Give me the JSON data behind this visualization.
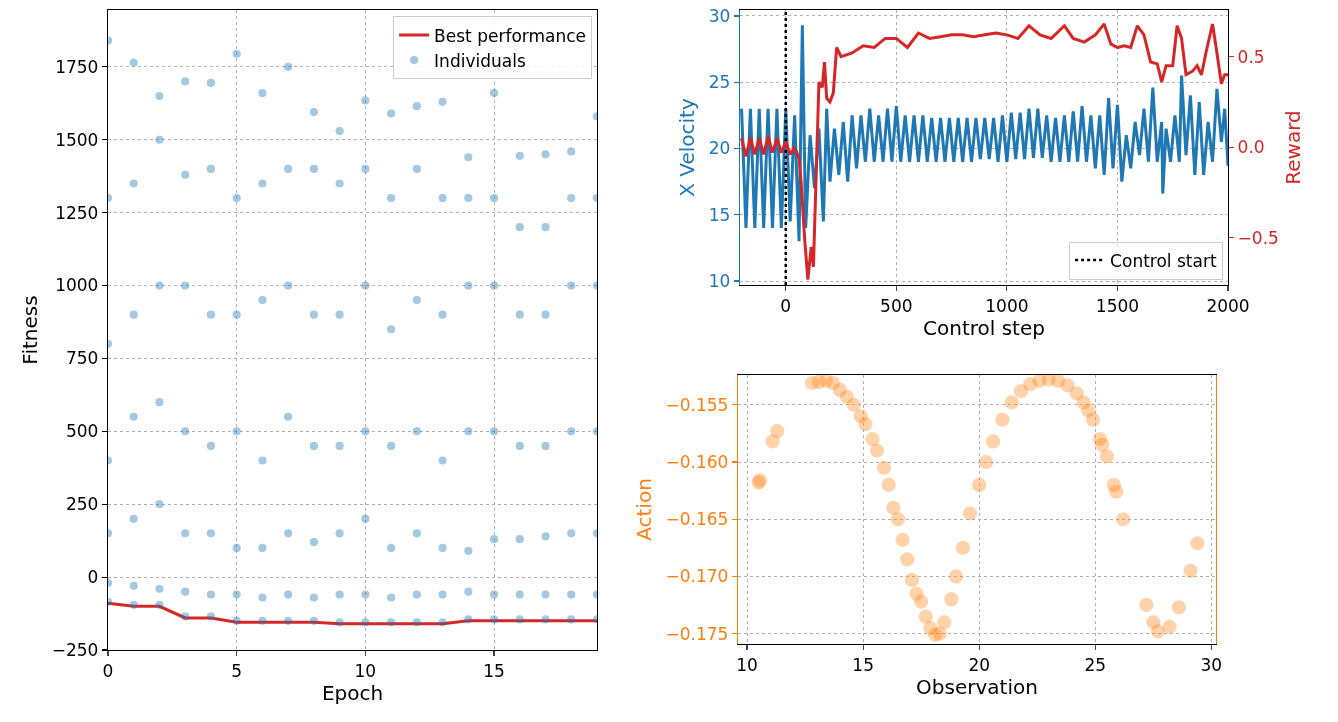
{
  "chart_data": [
    {
      "type": "scatter",
      "xlabel": "Epoch",
      "ylabel": "Fitness",
      "xlim": [
        0,
        19
      ],
      "xticks": [
        0,
        5,
        10,
        15
      ],
      "ylim": [
        -250,
        1945
      ],
      "yticks": [
        -250,
        0,
        250,
        500,
        750,
        1000,
        1250,
        1500,
        1750
      ],
      "grid": true,
      "legend": "top right",
      "series": [
        {
          "name": "Best performance",
          "type": "line",
          "color": "#d62728",
          "x": [
            0,
            1,
            2,
            3,
            4,
            5,
            6,
            7,
            8,
            9,
            10,
            11,
            12,
            13,
            14,
            15,
            16,
            17,
            18,
            19
          ],
          "values": [
            -90,
            -100,
            -100,
            -140,
            -140,
            -155,
            -155,
            -155,
            -155,
            -160,
            -160,
            -160,
            -160,
            -160,
            -150,
            -150,
            -150,
            -150,
            -150,
            -150
          ]
        },
        {
          "name": "Individuals",
          "marker": "circle",
          "color": "#1f77b4",
          "x": [
            0,
            0,
            0,
            0,
            0,
            0,
            0,
            1,
            1,
            1,
            1,
            1,
            1,
            1,
            2,
            2,
            2,
            2,
            2,
            2,
            2,
            3,
            3,
            3,
            3,
            3,
            3,
            3,
            4,
            4,
            4,
            4,
            4,
            4,
            4,
            5,
            5,
            5,
            5,
            5,
            5,
            5,
            6,
            6,
            6,
            6,
            6,
            6,
            6,
            7,
            7,
            7,
            7,
            7,
            7,
            7,
            8,
            8,
            8,
            8,
            8,
            8,
            8,
            9,
            9,
            9,
            9,
            9,
            9,
            9,
            10,
            10,
            10,
            10,
            10,
            10,
            10,
            11,
            11,
            11,
            11,
            11,
            11,
            11,
            12,
            12,
            12,
            12,
            12,
            12,
            12,
            13,
            13,
            13,
            13,
            13,
            13,
            13,
            14,
            14,
            14,
            14,
            14,
            14,
            14,
            15,
            15,
            15,
            15,
            15,
            15,
            15,
            16,
            16,
            16,
            16,
            16,
            16,
            16,
            17,
            17,
            17,
            17,
            17,
            17,
            17,
            18,
            18,
            18,
            18,
            18,
            18,
            18,
            19,
            19,
            19,
            19,
            19,
            19,
            19
          ],
          "values": [
            -85,
            -20,
            150,
            400,
            800,
            1300,
            1840,
            -95,
            -30,
            200,
            550,
            900,
            1350,
            1765,
            -95,
            -40,
            250,
            600,
            1000,
            1500,
            1650,
            -135,
            -50,
            150,
            500,
            1000,
            1380,
            1700,
            -135,
            -60,
            150,
            450,
            900,
            1400,
            1695,
            -150,
            -60,
            100,
            500,
            900,
            1300,
            1795,
            -150,
            -70,
            100,
            400,
            950,
            1350,
            1660,
            -150,
            -60,
            150,
            550,
            1000,
            1400,
            1750,
            -150,
            -70,
            120,
            450,
            900,
            1400,
            1595,
            -155,
            -60,
            150,
            450,
            900,
            1350,
            1530,
            -155,
            -60,
            200,
            500,
            1000,
            1400,
            1635,
            -155,
            -70,
            100,
            450,
            850,
            1300,
            1590,
            -155,
            -60,
            150,
            500,
            950,
            1400,
            1615,
            -155,
            -60,
            100,
            400,
            900,
            1300,
            1630,
            -145,
            -50,
            90,
            500,
            1000,
            1300,
            1440,
            -145,
            -60,
            130,
            500,
            1000,
            1300,
            1660,
            -145,
            -60,
            130,
            450,
            900,
            1200,
            1445,
            -145,
            -60,
            140,
            450,
            900,
            1200,
            1450,
            -145,
            -60,
            150,
            500,
            1000,
            1300,
            1460,
            -145,
            -60,
            150,
            500,
            1000,
            1300,
            1580
          ]
        }
      ]
    },
    {
      "type": "line",
      "xlabel": "Control step",
      "ylabel": "X Velocity",
      "y2label": "Reward",
      "xlim": [
        -207,
        2000
      ],
      "xticks": [
        0,
        500,
        1000,
        1500,
        2000
      ],
      "ylim": [
        9.7,
        30.45
      ],
      "yticks": [
        10,
        15,
        20,
        25,
        30
      ],
      "y2lim": [
        -0.76,
        0.757
      ],
      "y2ticks": [
        {
          "value": -0.5,
          "label": "−0.5"
        },
        {
          "value": 0,
          "label": "0.0"
        },
        {
          "value": 0.5,
          "label": "0.5"
        }
      ],
      "grid": true,
      "legend": "bottom right",
      "ref_lines": [
        {
          "axis": "x",
          "value": 0,
          "label": "Control start",
          "color": "#000000",
          "line_style": "dotted"
        }
      ],
      "series": [
        {
          "color": "#1f77b4",
          "x": [
            -200,
            -180,
            -160,
            -140,
            -120,
            -100,
            -80,
            -60,
            -40,
            -20,
            0,
            20,
            40,
            60,
            75,
            90,
            110,
            130,
            150,
            170,
            185,
            200,
            220,
            240,
            260,
            280,
            300,
            320,
            340,
            360,
            380,
            400,
            420,
            440,
            460,
            480,
            500,
            520,
            540,
            560,
            580,
            600,
            620,
            640,
            660,
            680,
            700,
            720,
            740,
            760,
            780,
            800,
            820,
            840,
            860,
            880,
            900,
            920,
            940,
            960,
            980,
            1000,
            1020,
            1040,
            1060,
            1080,
            1100,
            1120,
            1140,
            1160,
            1180,
            1200,
            1220,
            1240,
            1260,
            1280,
            1300,
            1320,
            1340,
            1360,
            1380,
            1400,
            1420,
            1440,
            1460,
            1480,
            1500,
            1520,
            1540,
            1560,
            1580,
            1600,
            1620,
            1640,
            1660,
            1680,
            1700,
            1705,
            1720,
            1740,
            1760,
            1780,
            1790,
            1810,
            1830,
            1850,
            1870,
            1890,
            1910,
            1930,
            1950,
            1970,
            1985,
            2000
          ],
          "values": [
            23,
            14,
            23,
            14,
            23,
            14,
            23,
            14,
            23,
            14,
            23,
            14.5,
            22.5,
            13,
            29.3,
            14,
            21,
            17,
            21.5,
            14.5,
            23,
            17.5,
            21.5,
            18,
            22,
            17.5,
            22.5,
            18.5,
            22.5,
            19,
            23,
            19,
            22.5,
            19,
            23,
            19,
            23.2,
            19,
            22.5,
            19,
            22.5,
            19,
            22.5,
            19,
            22.3,
            19,
            22.3,
            19,
            22.3,
            19,
            22.3,
            19,
            22.3,
            19,
            22.3,
            19.2,
            22.3,
            19.2,
            22.3,
            19,
            22.5,
            19,
            22.7,
            19.2,
            22.7,
            19.2,
            23,
            19.3,
            23,
            19.3,
            22.5,
            19,
            22.3,
            19,
            22.5,
            19,
            22.8,
            19,
            23.2,
            19,
            22.5,
            18.5,
            22.5,
            18,
            23.8,
            18.5,
            23.3,
            17.5,
            21,
            18.5,
            22,
            19.5,
            23,
            19,
            24.6,
            19,
            22,
            16.6,
            21.5,
            19,
            22.5,
            19,
            25.5,
            19.5,
            24,
            18,
            23.5,
            18,
            22,
            19,
            24.5,
            20.5,
            23,
            18.7
          ]
        },
        {
          "color": "#d62728",
          "axis": "y2",
          "x": [
            -200,
            -180,
            -160,
            -140,
            -120,
            -100,
            -80,
            -60,
            -40,
            -20,
            0,
            20,
            40,
            60,
            70,
            85,
            100,
            115,
            125,
            140,
            150,
            165,
            175,
            185,
            200,
            215,
            230,
            250,
            300,
            350,
            400,
            450,
            500,
            550,
            600,
            650,
            700,
            750,
            800,
            850,
            900,
            950,
            1000,
            1050,
            1100,
            1150,
            1200,
            1260,
            1300,
            1350,
            1400,
            1440,
            1470,
            1500,
            1530,
            1560,
            1590,
            1620,
            1650,
            1680,
            1700,
            1720,
            1750,
            1770,
            1790,
            1810,
            1840,
            1860,
            1880,
            1900,
            1930,
            1950,
            1970,
            1985,
            2000
          ],
          "values": [
            0.05,
            -0.05,
            0.05,
            -0.04,
            0.05,
            -0.04,
            0.06,
            -0.03,
            0.05,
            -0.03,
            0.03,
            -0.04,
            0,
            -0.06,
            -0.2,
            -0.5,
            -0.73,
            -0.55,
            -0.66,
            -0.05,
            0.36,
            0.33,
            0.47,
            0.27,
            0.25,
            0.3,
            0.55,
            0.5,
            0.52,
            0.56,
            0.55,
            0.6,
            0.6,
            0.55,
            0.63,
            0.6,
            0.61,
            0.62,
            0.62,
            0.61,
            0.62,
            0.63,
            0.62,
            0.6,
            0.67,
            0.62,
            0.6,
            0.67,
            0.6,
            0.58,
            0.62,
            0.68,
            0.57,
            0.55,
            0.56,
            0.55,
            0.67,
            0.62,
            0.47,
            0.46,
            0.36,
            0.45,
            0.45,
            0.67,
            0.6,
            0.4,
            0.42,
            0.45,
            0.4,
            0.52,
            0.68,
            0.52,
            0.35,
            0.4,
            0.4
          ]
        }
      ]
    },
    {
      "type": "scatter",
      "marker": "circle",
      "xlabel": "Observation",
      "ylabel": "Action",
      "xlim": [
        9.61,
        30.2
      ],
      "xticks": [
        10,
        15,
        20,
        25,
        30
      ],
      "ylim": [
        -0.1759,
        -0.1524
      ],
      "yticks": [
        {
          "value": -0.175,
          "label": "−0.175"
        },
        {
          "value": -0.17,
          "label": "−0.170"
        },
        {
          "value": -0.165,
          "label": "−0.165"
        },
        {
          "value": -0.16,
          "label": "−0.160"
        },
        {
          "value": -0.155,
          "label": "−0.155"
        }
      ],
      "grid": true,
      "series": [
        {
          "color": "#ff7f0e",
          "x": [
            10.5,
            10.55,
            11.1,
            11.3,
            12.8,
            13.1,
            13.4,
            13.7,
            14.0,
            14.3,
            14.6,
            14.9,
            15.1,
            15.4,
            15.6,
            15.9,
            16.1,
            16.3,
            16.5,
            16.7,
            16.9,
            17.1,
            17.3,
            17.5,
            17.7,
            17.9,
            18.1,
            18.3,
            18.5,
            18.8,
            19.0,
            19.3,
            19.6,
            20.0,
            20.3,
            20.6,
            21.0,
            21.4,
            21.8,
            22.2,
            22.6,
            23.0,
            23.4,
            23.8,
            24.2,
            24.5,
            24.7,
            24.9,
            25.2,
            25.3,
            25.5,
            25.8,
            25.9,
            26.2,
            27.2,
            27.5,
            27.7,
            28.2,
            28.6,
            29.1,
            29.4
          ],
          "values": [
            -0.1618,
            -0.1616,
            -0.1582,
            -0.1573,
            -0.1531,
            -0.153,
            -0.1529,
            -0.1531,
            -0.1537,
            -0.1543,
            -0.155,
            -0.156,
            -0.1567,
            -0.158,
            -0.159,
            -0.1605,
            -0.162,
            -0.164,
            -0.165,
            -0.1668,
            -0.1685,
            -0.1703,
            -0.1715,
            -0.1722,
            -0.1735,
            -0.1745,
            -0.1751,
            -0.175,
            -0.174,
            -0.172,
            -0.17,
            -0.1675,
            -0.1645,
            -0.162,
            -0.16,
            -0.1582,
            -0.1563,
            -0.1548,
            -0.1538,
            -0.1532,
            -0.1529,
            -0.1528,
            -0.1529,
            -0.1533,
            -0.154,
            -0.1548,
            -0.1555,
            -0.1563,
            -0.158,
            -0.1585,
            -0.1595,
            -0.162,
            -0.1626,
            -0.165,
            -0.1725,
            -0.174,
            -0.1748,
            -0.1744,
            -0.1727,
            -0.1695,
            -0.1671
          ]
        }
      ]
    }
  ]
}
